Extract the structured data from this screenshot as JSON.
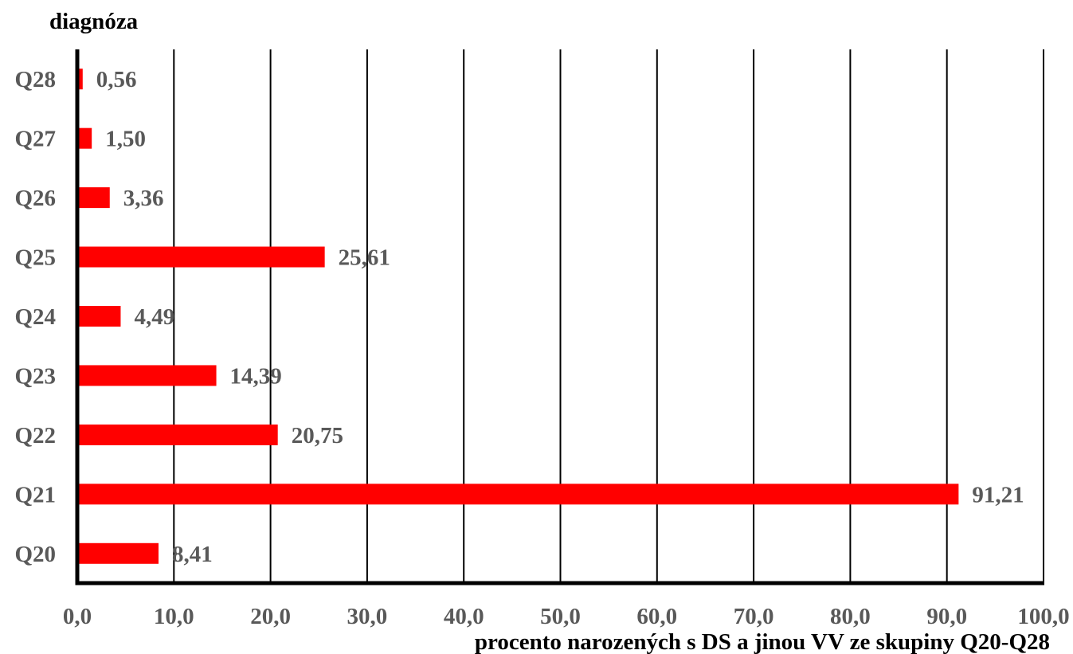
{
  "chart_data": {
    "type": "bar",
    "orientation": "horizontal",
    "ylabel": "diagnóza",
    "xlabel": "procento narozených s DS a jinou VV ze skupiny Q20-Q28",
    "categories": [
      "Q20",
      "Q21",
      "Q22",
      "Q23",
      "Q24",
      "Q25",
      "Q26",
      "Q27",
      "Q28"
    ],
    "values": [
      8.41,
      91.21,
      20.75,
      14.39,
      4.49,
      25.61,
      3.36,
      1.5,
      0.56
    ],
    "value_labels": [
      "8,41",
      "91,21",
      "20,75",
      "14,39",
      "4,49",
      "25,61",
      "3,36",
      "1,50",
      "0,56"
    ],
    "xlim": [
      0,
      100
    ],
    "x_ticks": [
      0,
      10,
      20,
      30,
      40,
      50,
      60,
      70,
      80,
      90,
      100
    ],
    "x_tick_labels": [
      "0,0",
      "10,0",
      "20,0",
      "30,0",
      "40,0",
      "50,0",
      "60,0",
      "70,0",
      "80,0",
      "90,0",
      "100,0"
    ],
    "grid": "vertical",
    "legend": "none",
    "bar_color": "#ff0000",
    "gridline_color": "#000000",
    "label_color": "#595959"
  }
}
